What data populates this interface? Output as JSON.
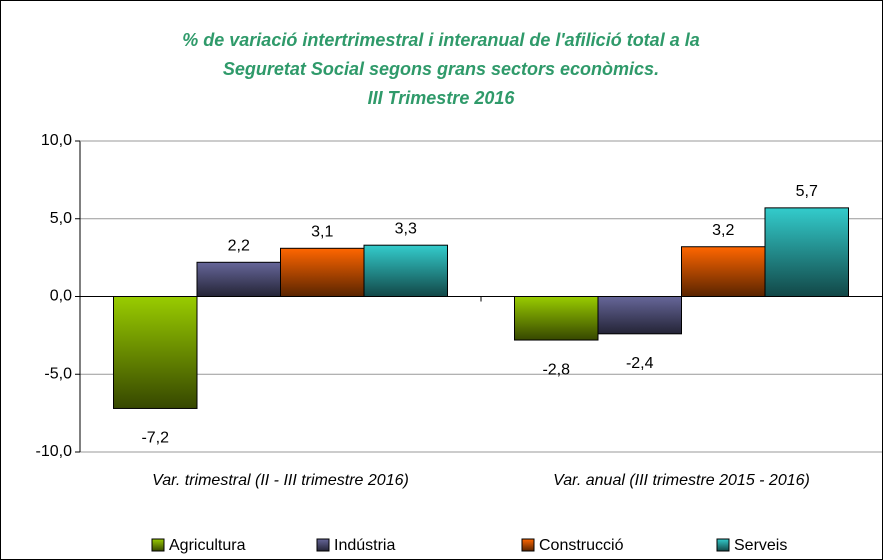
{
  "chart_data": {
    "type": "bar",
    "title": [
      "% de variació intertrimestral i interanual de l'afilició total a la",
      "Seguretat Social segons grans sectors econòmics.",
      "III Trimestre 2016"
    ],
    "categories": [
      "Var. trimestral (II - III trimestre 2016)",
      "Var. anual (III trimestre 2015 - 2016)"
    ],
    "series": [
      {
        "name": "Agricultura",
        "color": "#99cc00",
        "values": [
          -7.2,
          -2.8
        ],
        "value_labels": [
          "-7,2",
          "-2,8"
        ]
      },
      {
        "name": "Indústria",
        "color": "#666699",
        "values": [
          2.2,
          -2.4
        ],
        "value_labels": [
          "2,2",
          "-2,4"
        ]
      },
      {
        "name": "Construcció",
        "color": "#ff6600",
        "values": [
          3.1,
          3.2
        ],
        "value_labels": [
          "3,1",
          "3,2"
        ]
      },
      {
        "name": "Serveis",
        "color": "#33cccc",
        "values": [
          3.3,
          5.7
        ],
        "value_labels": [
          "3,3",
          "5,7"
        ]
      }
    ],
    "ylim": [
      -10,
      10
    ],
    "yticks": [
      {
        "value": -10,
        "label": "-10,0"
      },
      {
        "value": -5,
        "label": "-5,0"
      },
      {
        "value": 0,
        "label": "0,0"
      },
      {
        "value": 5,
        "label": "5,0"
      },
      {
        "value": 10,
        "label": "10,0"
      }
    ],
    "grid": true,
    "legend": "bottom"
  }
}
